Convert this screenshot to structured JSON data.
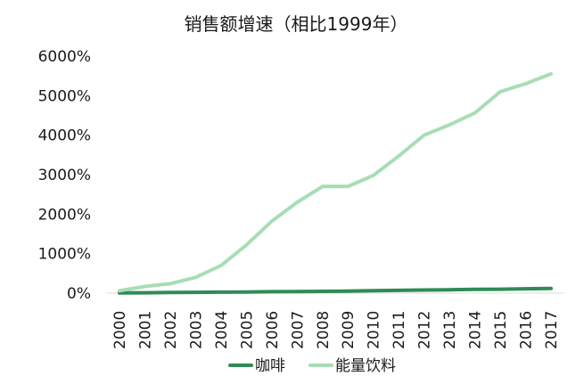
{
  "chart_data": {
    "type": "line",
    "title": "销售额增速（相比1999年）",
    "xlabel": "",
    "ylabel": "",
    "categories": [
      "2000",
      "2001",
      "2002",
      "2003",
      "2004",
      "2005",
      "2006",
      "2007",
      "2008",
      "2009",
      "2010",
      "2011",
      "2012",
      "2013",
      "2014",
      "2015",
      "2016",
      "2017"
    ],
    "y_ticks": [
      "0%",
      "1000%",
      "2000%",
      "3000%",
      "4000%",
      "5000%",
      "6000%"
    ],
    "ylim": [
      0,
      6000
    ],
    "series": [
      {
        "name": "咖啡",
        "color": "#2e8b57",
        "values": [
          5,
          10,
          15,
          20,
          25,
          30,
          35,
          40,
          45,
          50,
          60,
          70,
          80,
          85,
          95,
          100,
          110,
          120
        ]
      },
      {
        "name": "能量饮料",
        "color": "#a8ddb5",
        "values": [
          60,
          170,
          240,
          400,
          700,
          1220,
          1820,
          2300,
          2700,
          2700,
          2980,
          3470,
          4000,
          4260,
          4560,
          5100,
          5300,
          5550
        ]
      }
    ],
    "grid": false,
    "legend": "bottom"
  }
}
